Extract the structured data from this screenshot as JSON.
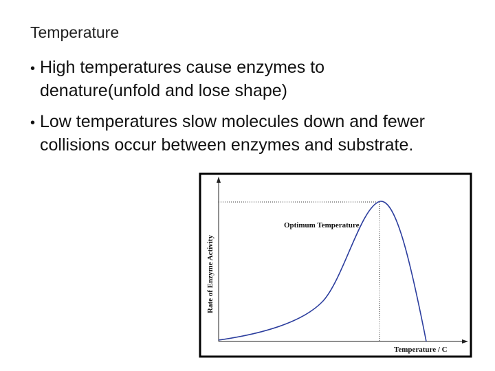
{
  "slide": {
    "title": "Temperature",
    "bullets": [
      "High temperatures cause enzymes to denature(unfold and lose shape)",
      "Low temperatures slow molecules down and fewer collisions occur between enzymes and substrate."
    ],
    "figure": {
      "y_axis_label": "Rate of Enzyme Activity",
      "annotation": "Optimum Temperature",
      "x_axis_label": "Temperature / C"
    }
  }
}
